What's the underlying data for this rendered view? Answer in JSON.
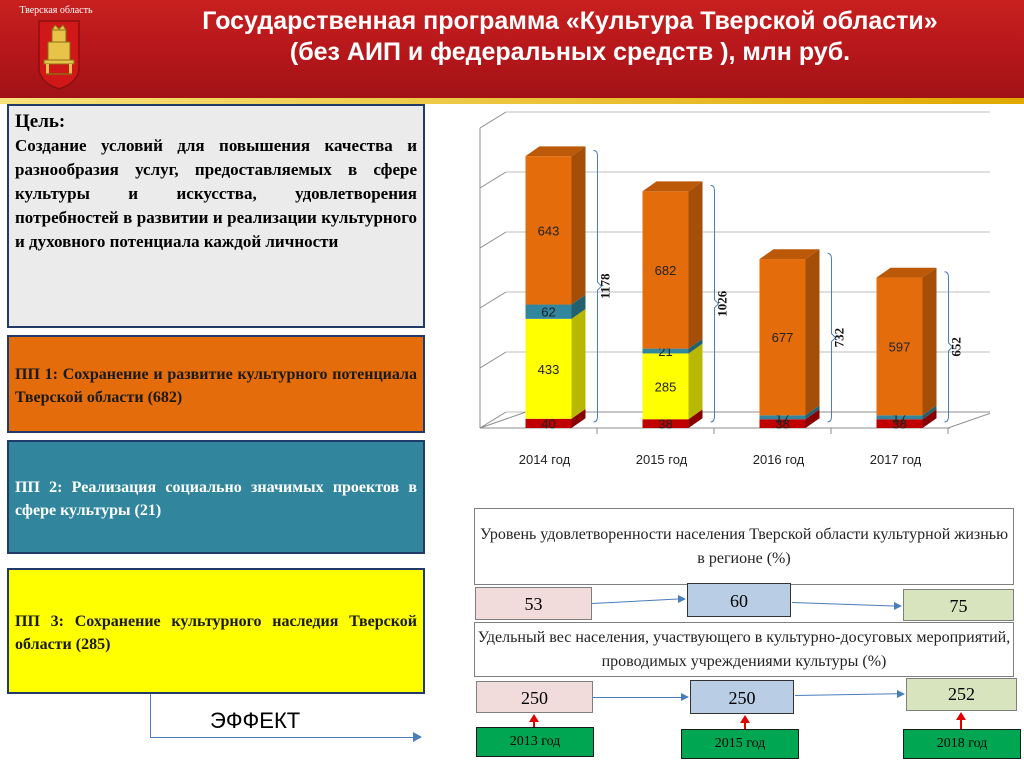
{
  "header": {
    "region": "Тверская область",
    "title_line1": "Государственная программа «Культура Тверской области»",
    "title_line2": "(без АИП и федеральных средств ), млн руб."
  },
  "goal": {
    "label": "Цель:",
    "text": "Создание условий для повышения качества и разнообразия услуг, предоставляемых в сфере культуры и искусства, удовлетворения потребностей в развитии и реализации культурного и духовного потенциала каждой личности"
  },
  "programs": [
    {
      "text": "ПП 1: Сохранение и развитие культурного потенциала Тверской области (682)",
      "color": "#e46c0a"
    },
    {
      "text": "ПП 2: Реализация социально значимых проектов в сфере культуры (21)",
      "color": "#31859c"
    },
    {
      "text": "ПП 3: Сохранение культурного наследия Тверской области (285)",
      "color": "#ffff00"
    }
  ],
  "effect_label": "ЭФФЕКТ",
  "chart_data": {
    "type": "bar",
    "stacked": true,
    "categories": [
      "2014 год",
      "2015 год",
      "2016 год",
      "2017 год"
    ],
    "series": [
      {
        "values": [
          40,
          38,
          38,
          38
        ],
        "color": "#c00000",
        "labels": [
          "40",
          "38",
          "38",
          "38"
        ]
      },
      {
        "values": [
          433,
          285,
          0,
          0
        ],
        "color": "#ffff00",
        "labels": [
          "433",
          "285",
          "",
          ""
        ]
      },
      {
        "values": [
          62,
          21,
          17,
          17
        ],
        "color": "#31859c",
        "labels": [
          "62",
          "21",
          "17",
          "17"
        ]
      },
      {
        "values": [
          643,
          682,
          677,
          597
        ],
        "color": "#e46c0a",
        "labels": [
          "643",
          "682",
          "677",
          "597"
        ]
      }
    ],
    "totals": [
      "1178",
      "1026",
      "732",
      "652"
    ],
    "ylim": [
      0,
      1300
    ],
    "grid": true
  },
  "indicators": [
    {
      "title": "Уровень удовлетворенности населения Тверской области культурной жизнью в регионе (%)",
      "values": [
        "53",
        "60",
        "75"
      ]
    },
    {
      "title": "Удельный вес населения, участвующего в культурно-досуговых мероприятий, проводимых учреждениями культуры (%)",
      "values": [
        "250",
        "250",
        "252"
      ]
    }
  ],
  "years": [
    "2013 год",
    "2015 год",
    "2018 год"
  ],
  "colors": {
    "header": "#c00000",
    "effect_green": "#00a651"
  }
}
